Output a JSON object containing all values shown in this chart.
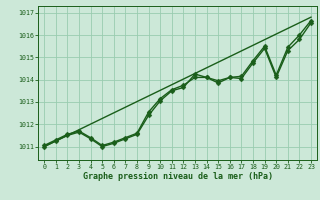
{
  "xlabel": "Graphe pression niveau de la mer (hPa)",
  "xlim": [
    -0.5,
    23.5
  ],
  "ylim": [
    1010.4,
    1017.3
  ],
  "yticks": [
    1011,
    1012,
    1013,
    1014,
    1015,
    1016,
    1017
  ],
  "xticks": [
    0,
    1,
    2,
    3,
    4,
    5,
    6,
    7,
    8,
    9,
    10,
    11,
    12,
    13,
    14,
    15,
    16,
    17,
    18,
    19,
    20,
    21,
    22,
    23
  ],
  "bg_color": "#cce8d8",
  "grid_color": "#99ccb0",
  "line_color": "#1a5e1a",
  "line_width": 1.0,
  "marker": "D",
  "marker_size": 2.5,
  "series1": [
    1011.0,
    1011.25,
    1011.5,
    1011.65,
    1011.35,
    1011.0,
    1011.15,
    1011.35,
    1011.55,
    1012.4,
    1013.05,
    1013.5,
    1013.65,
    1014.25,
    1014.1,
    1013.85,
    1014.1,
    1014.05,
    1014.75,
    1015.4,
    1014.1,
    1015.3,
    1015.8,
    1016.55
  ],
  "series2": [
    1011.05,
    1011.3,
    1011.55,
    1011.7,
    1011.4,
    1011.05,
    1011.2,
    1011.4,
    1011.6,
    1012.55,
    1013.15,
    1013.55,
    1013.75,
    1014.1,
    1014.1,
    1013.95,
    1014.1,
    1014.15,
    1014.85,
    1015.5,
    1014.2,
    1015.45,
    1016.0,
    1016.65
  ],
  "trend_x": [
    0,
    23
  ],
  "trend_y": [
    1011.0,
    1016.8
  ],
  "xlabel_fontsize": 6.0,
  "tick_fontsize": 4.8
}
